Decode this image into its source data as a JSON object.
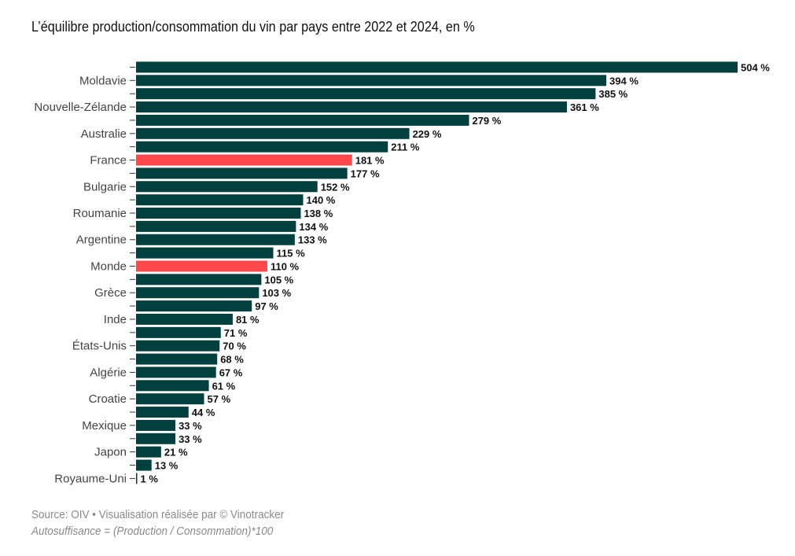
{
  "chart_data": {
    "type": "bar",
    "orientation": "horizontal",
    "title": "L’équilibre production/consommation du vin par pays entre 2022 et 2024, en %",
    "xlabel": "",
    "ylabel": "",
    "value_suffix": " %",
    "xlim": [
      0,
      504
    ],
    "grid": false,
    "categories": [
      "",
      "Moldavie",
      "",
      "Nouvelle-Zélande",
      "",
      "Australie",
      "",
      "France",
      "",
      "Bulgarie",
      "",
      "Roumanie",
      "",
      "Argentine",
      "",
      "Monde",
      "",
      "Grèce",
      "",
      "Inde",
      "",
      "États-Unis",
      "",
      "Algérie",
      "",
      "Croatie",
      "",
      "Mexique",
      "",
      "Japon",
      "",
      "Royaume-Uni"
    ],
    "values": [
      504,
      394,
      385,
      361,
      279,
      229,
      211,
      181,
      177,
      152,
      140,
      138,
      134,
      133,
      115,
      110,
      105,
      103,
      97,
      81,
      71,
      70,
      68,
      67,
      61,
      57,
      44,
      33,
      33,
      21,
      13,
      1
    ],
    "highlighted": [
      "France",
      "Monde"
    ],
    "colors": {
      "default": "#01403f",
      "highlight": "#ff474c"
    }
  },
  "footer": {
    "source": "Source: OIV • Visualisation réalisée par © Vinotracker",
    "note": "Autosuffisance = (Production / Consommation)*100"
  }
}
